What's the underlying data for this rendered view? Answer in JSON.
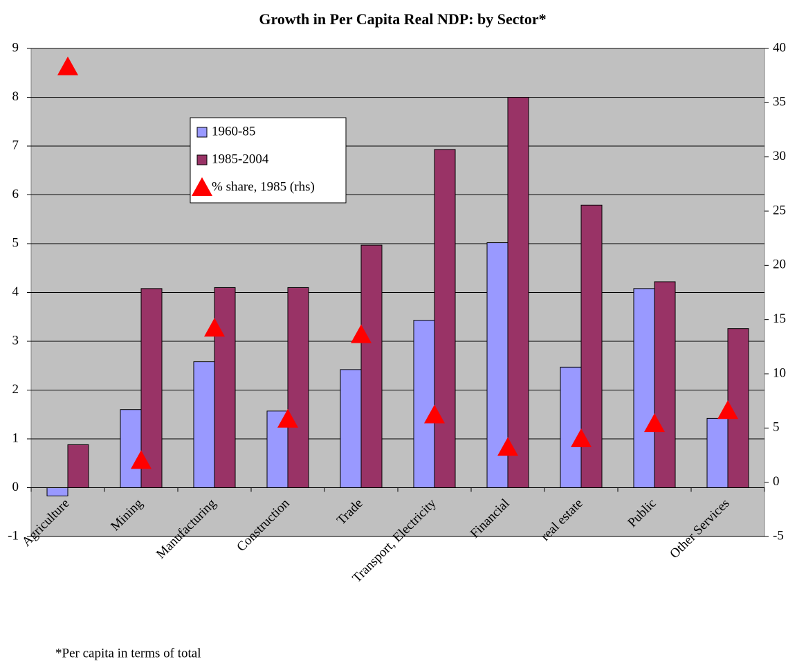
{
  "chart_data": {
    "type": "bar",
    "title": "Growth in Per Capita Real NDP: by Sector*",
    "footnote": "*Per capita in terms of total",
    "categories": [
      "Agriculture",
      "Mining",
      "Manufacturing",
      "Construction",
      "Trade",
      "Transport, Electricity",
      "Financial",
      "real estate",
      "Public",
      "Other Services"
    ],
    "series": [
      {
        "name": "1960-85",
        "color": "#9999ff",
        "values": [
          -0.17,
          1.6,
          2.58,
          1.57,
          2.42,
          3.43,
          5.02,
          2.47,
          4.08,
          1.42
        ]
      },
      {
        "name": "1985-2004",
        "color": "#993366",
        "values": [
          0.88,
          4.08,
          4.1,
          4.1,
          4.97,
          6.93,
          8.0,
          5.79,
          4.22,
          3.26
        ]
      },
      {
        "name": "% share, 1985 (rhs)",
        "color": "#ff0000",
        "type": "scatter",
        "axis": "y2",
        "values": [
          38.3,
          2.0,
          14.2,
          5.8,
          13.6,
          6.2,
          3.2,
          4.0,
          5.4,
          6.6
        ]
      }
    ],
    "ylim": [
      -1,
      9
    ],
    "yticks": [
      -1,
      0,
      1,
      2,
      3,
      4,
      5,
      6,
      7,
      8,
      9
    ],
    "y2lim": [
      -5,
      40
    ],
    "y2ticks": [
      -5,
      0,
      5,
      10,
      15,
      20,
      25,
      30,
      35,
      40
    ],
    "grid": true
  }
}
